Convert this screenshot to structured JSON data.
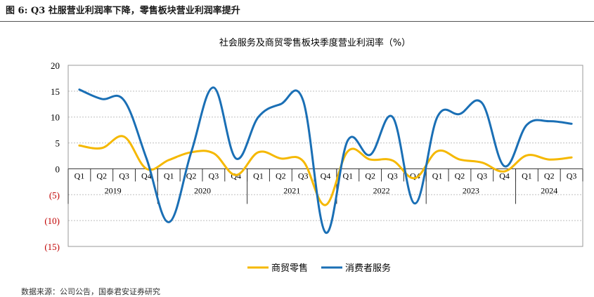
{
  "figure": {
    "caption": "图 6:  Q3 社服营业利润率下降，零售板块营业利润率提升",
    "source": "数据来源：公司公告，国泰君安证券研究"
  },
  "chart_data": {
    "type": "line",
    "title": "社会服务及商贸零售板块季度营业利润率（%）",
    "xlabel": "",
    "ylabel": "",
    "ylim": [
      -15,
      20
    ],
    "y_ticks": [
      20,
      15,
      10,
      5,
      0,
      -5,
      -10,
      -15
    ],
    "y_tick_labels": [
      "20",
      "15",
      "10",
      "5",
      "0",
      "(5)",
      "(10)",
      "(15)"
    ],
    "negative_tick_color": "#c00000",
    "grid": true,
    "legend": "bottom",
    "categories": [
      "Q1",
      "Q2",
      "Q3",
      "Q4",
      "Q1",
      "Q2",
      "Q3",
      "Q4",
      "Q1",
      "Q2",
      "Q3",
      "Q4",
      "Q1",
      "Q2",
      "Q3",
      "Q4",
      "Q1",
      "Q2",
      "Q3",
      "Q4",
      "Q1",
      "Q2",
      "Q3"
    ],
    "years": [
      {
        "label": "2019",
        "count": 4
      },
      {
        "label": "2020",
        "count": 4
      },
      {
        "label": "2021",
        "count": 4
      },
      {
        "label": "2022",
        "count": 4
      },
      {
        "label": "2023",
        "count": 4
      },
      {
        "label": "2024",
        "count": 3
      }
    ],
    "series": [
      {
        "name": "商贸零售",
        "color": "#f5b800",
        "values": [
          4.5,
          4.0,
          6.2,
          0.0,
          1.7,
          3.2,
          3.0,
          -1.2,
          3.2,
          2.0,
          1.5,
          -7.0,
          3.4,
          1.8,
          1.6,
          -1.8,
          3.4,
          1.8,
          1.2,
          -0.5,
          2.6,
          1.8,
          2.2
        ]
      },
      {
        "name": "消费者服务",
        "color": "#1a6fb5",
        "values": [
          15.3,
          13.5,
          13.2,
          2.0,
          -10.3,
          3.2,
          15.7,
          2.0,
          10.0,
          12.5,
          13.2,
          -12.3,
          5.5,
          2.7,
          10.0,
          -6.7,
          10.0,
          10.6,
          12.7,
          0.5,
          8.5,
          9.2,
          8.7
        ]
      }
    ]
  }
}
